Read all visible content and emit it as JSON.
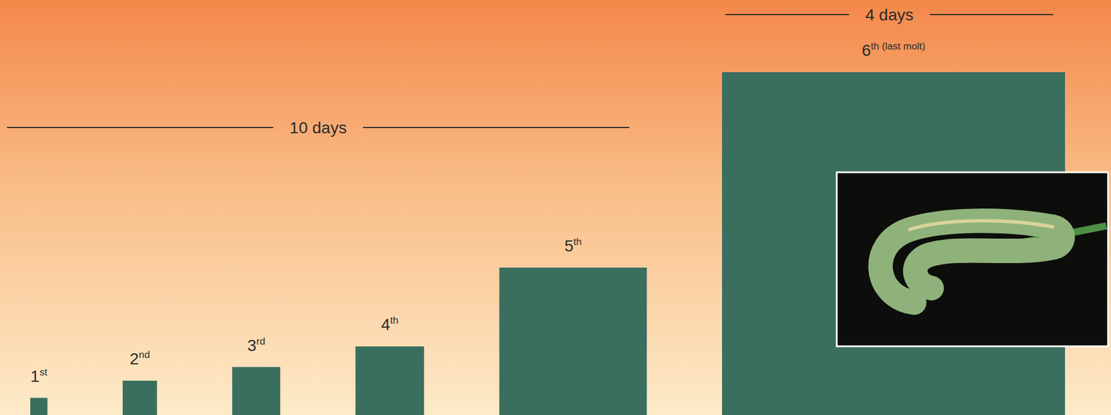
{
  "chart_data": {
    "type": "bar",
    "categories": [
      "1st",
      "2nd",
      "3rd",
      "4th",
      "5th",
      "6th (last molt)"
    ],
    "values": [
      5,
      10,
      14,
      20,
      43,
      100
    ],
    "color": "#3a6e5f",
    "ylim": [
      0,
      100
    ],
    "tick_labels": false,
    "annotations": [
      "10 days",
      "4 days"
    ]
  }
}
